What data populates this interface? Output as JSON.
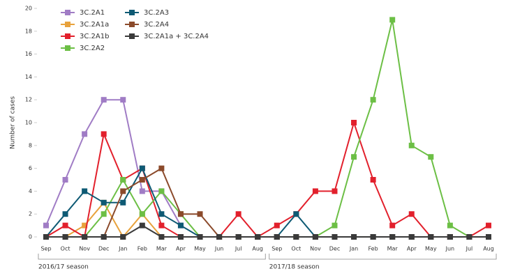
{
  "chart_data": {
    "type": "line",
    "y_label": "Number of cases",
    "categories": [
      "Sep",
      "Oct",
      "Nov",
      "Dec",
      "Jan",
      "Feb",
      "Mar",
      "Apr",
      "May",
      "Jun",
      "Jul",
      "Aug",
      "Sep",
      "Oct",
      "Nov",
      "Dec",
      "Jan",
      "Feb",
      "Mar",
      "Apr",
      "May",
      "Jun",
      "Jul",
      "Aug"
    ],
    "group_labels": [
      "2016/17 season",
      "2017/18 season"
    ],
    "ylim": [
      0,
      20
    ],
    "yticks": [
      0,
      2,
      4,
      6,
      8,
      10,
      12,
      14,
      16,
      18,
      20
    ],
    "series": [
      {
        "name": "3C.2A1",
        "color": "#a07cc5",
        "values": [
          1,
          5,
          9,
          12,
          12,
          4,
          4,
          1,
          null,
          null,
          null,
          null,
          null,
          null,
          null,
          null,
          null,
          null,
          null,
          null,
          null,
          null,
          null,
          null
        ]
      },
      {
        "name": "3C.2A1a",
        "color": "#e8a23c",
        "values": [
          0,
          0,
          1,
          3,
          0,
          2,
          0,
          0,
          0,
          0,
          0,
          0,
          null,
          null,
          null,
          null,
          null,
          null,
          null,
          null,
          null,
          null,
          null,
          null
        ]
      },
      {
        "name": "3C.2A1b",
        "color": "#e2202c",
        "values": [
          0,
          1,
          0,
          9,
          5,
          6,
          1,
          0,
          0,
          0,
          2,
          0,
          1,
          2,
          4,
          4,
          10,
          5,
          1,
          2,
          0,
          0,
          0,
          1
        ]
      },
      {
        "name": "3C.2A2",
        "color": "#6cbf45",
        "values": [
          0,
          0,
          0,
          2,
          5,
          2,
          4,
          2,
          0,
          0,
          0,
          0,
          0,
          0,
          0,
          1,
          7,
          12,
          19,
          8,
          7,
          1,
          0,
          0
        ]
      },
      {
        "name": "3C.2A3",
        "color": "#0e5a74",
        "values": [
          0,
          2,
          4,
          3,
          3,
          6,
          2,
          1,
          0,
          0,
          0,
          0,
          0,
          2,
          0,
          0,
          0,
          0,
          0,
          0,
          0,
          0,
          0,
          0
        ]
      },
      {
        "name": "3C.2A4",
        "color": "#8b4a2b",
        "values": [
          0,
          0,
          0,
          0,
          4,
          5,
          6,
          2,
          2,
          0,
          0,
          0,
          0,
          0,
          0,
          0,
          0,
          0,
          0,
          0,
          0,
          0,
          0,
          0
        ]
      },
      {
        "name": "3C.2A1a + 3C.2A4",
        "color": "#3a3a3a",
        "values": [
          0,
          0,
          0,
          0,
          0,
          1,
          0,
          0,
          0,
          0,
          0,
          0,
          0,
          0,
          0,
          0,
          0,
          0,
          0,
          0,
          0,
          0,
          0,
          0
        ]
      }
    ]
  }
}
